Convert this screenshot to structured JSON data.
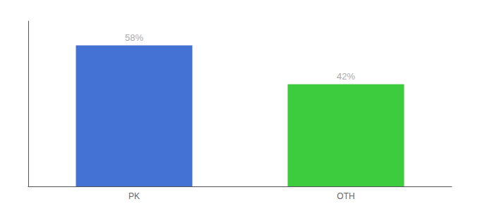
{
  "chart_data": {
    "type": "bar",
    "categories": [
      "PK",
      "OTH"
    ],
    "values": [
      58,
      42
    ],
    "value_labels": [
      "58%",
      "42%"
    ],
    "colors": [
      "#4472d4",
      "#3dcc3d"
    ],
    "ylim": [
      0,
      68
    ],
    "data_labels": true,
    "tick_labels": "x",
    "grid": false
  }
}
